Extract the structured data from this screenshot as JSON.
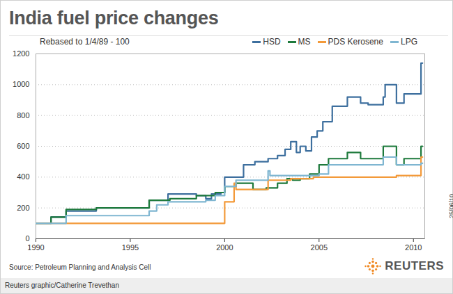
{
  "chart_data": {
    "type": "line",
    "title": "India fuel price changes",
    "subtitle": "Rebased to 1/4/89 - 100",
    "source": "Source: Petroleum Planning and Analysis Cell",
    "credit": "Reuters graphic/Catherine Trevethan",
    "date_stamp": "25/06/10",
    "logo_text": "REUTERS",
    "line_style": "step",
    "grid": true,
    "legend": "top-right",
    "xlim": [
      1990,
      2010.6
    ],
    "xticks": [
      1990,
      1995,
      2000,
      2005,
      2010
    ],
    "ylim": [
      0,
      1200
    ],
    "yticks": [
      0,
      200,
      400,
      600,
      800,
      1000,
      1200
    ],
    "series": [
      {
        "name": "HSD",
        "color": "#3d6f9e",
        "x": [
          1990,
          1990.8,
          1991.6,
          1993.2,
          1996.0,
          1997.0,
          1998.5,
          1999.0,
          1999.3,
          1999.8,
          2000.0,
          2001.0,
          2001.6,
          2002.3,
          2002.8,
          2003.2,
          2003.5,
          2003.8,
          2004.0,
          2004.3,
          2004.6,
          2004.9,
          2005.2,
          2005.7,
          2006.5,
          2007.2,
          2007.6,
          2008.4,
          2008.5,
          2009.1,
          2009.5,
          2010.4,
          2010.48
        ],
        "values": [
          100,
          140,
          180,
          200,
          250,
          290,
          280,
          260,
          290,
          300,
          400,
          480,
          500,
          520,
          540,
          580,
          630,
          560,
          600,
          570,
          660,
          700,
          760,
          860,
          920,
          880,
          870,
          920,
          1000,
          880,
          940,
          1140,
          1140
        ]
      },
      {
        "name": "MS",
        "color": "#1e7a3c",
        "x": [
          1990,
          1990.8,
          1991.6,
          1993.2,
          1996.0,
          1997.1,
          1998.5,
          1999.5,
          2000.0,
          2000.6,
          2001.5,
          2002.2,
          2002.8,
          2003.3,
          2003.6,
          2004.0,
          2004.5,
          2005.0,
          2005.5,
          2006.5,
          2007.2,
          2008.4,
          2009.1,
          2009.5,
          2010.4,
          2010.48
        ],
        "values": [
          100,
          140,
          190,
          200,
          250,
          260,
          280,
          300,
          340,
          360,
          320,
          330,
          360,
          390,
          380,
          390,
          420,
          480,
          520,
          560,
          520,
          600,
          480,
          520,
          600,
          600
        ]
      },
      {
        "name": "PDS Kerosene",
        "color": "#f39a3a",
        "x": [
          1990,
          2000.0,
          2000.5,
          2000.6,
          2002.3,
          2003.5,
          2004.7,
          2009.1,
          2010.4,
          2010.48
        ],
        "values": [
          100,
          240,
          360,
          320,
          380,
          390,
          400,
          410,
          530,
          530
        ]
      },
      {
        "name": "LPG",
        "color": "#7fb6d1",
        "x": [
          1990,
          1991.6,
          1996.0,
          1996.4,
          1997.0,
          1999.0,
          1999.5,
          2000.0,
          2000.6,
          2002.3,
          2002.4,
          2005.0,
          2005.5,
          2008.4,
          2009.1,
          2010.4,
          2010.48
        ],
        "values": [
          100,
          150,
          180,
          220,
          240,
          250,
          280,
          340,
          380,
          440,
          410,
          420,
          480,
          530,
          480,
          490,
          490
        ]
      }
    ]
  }
}
